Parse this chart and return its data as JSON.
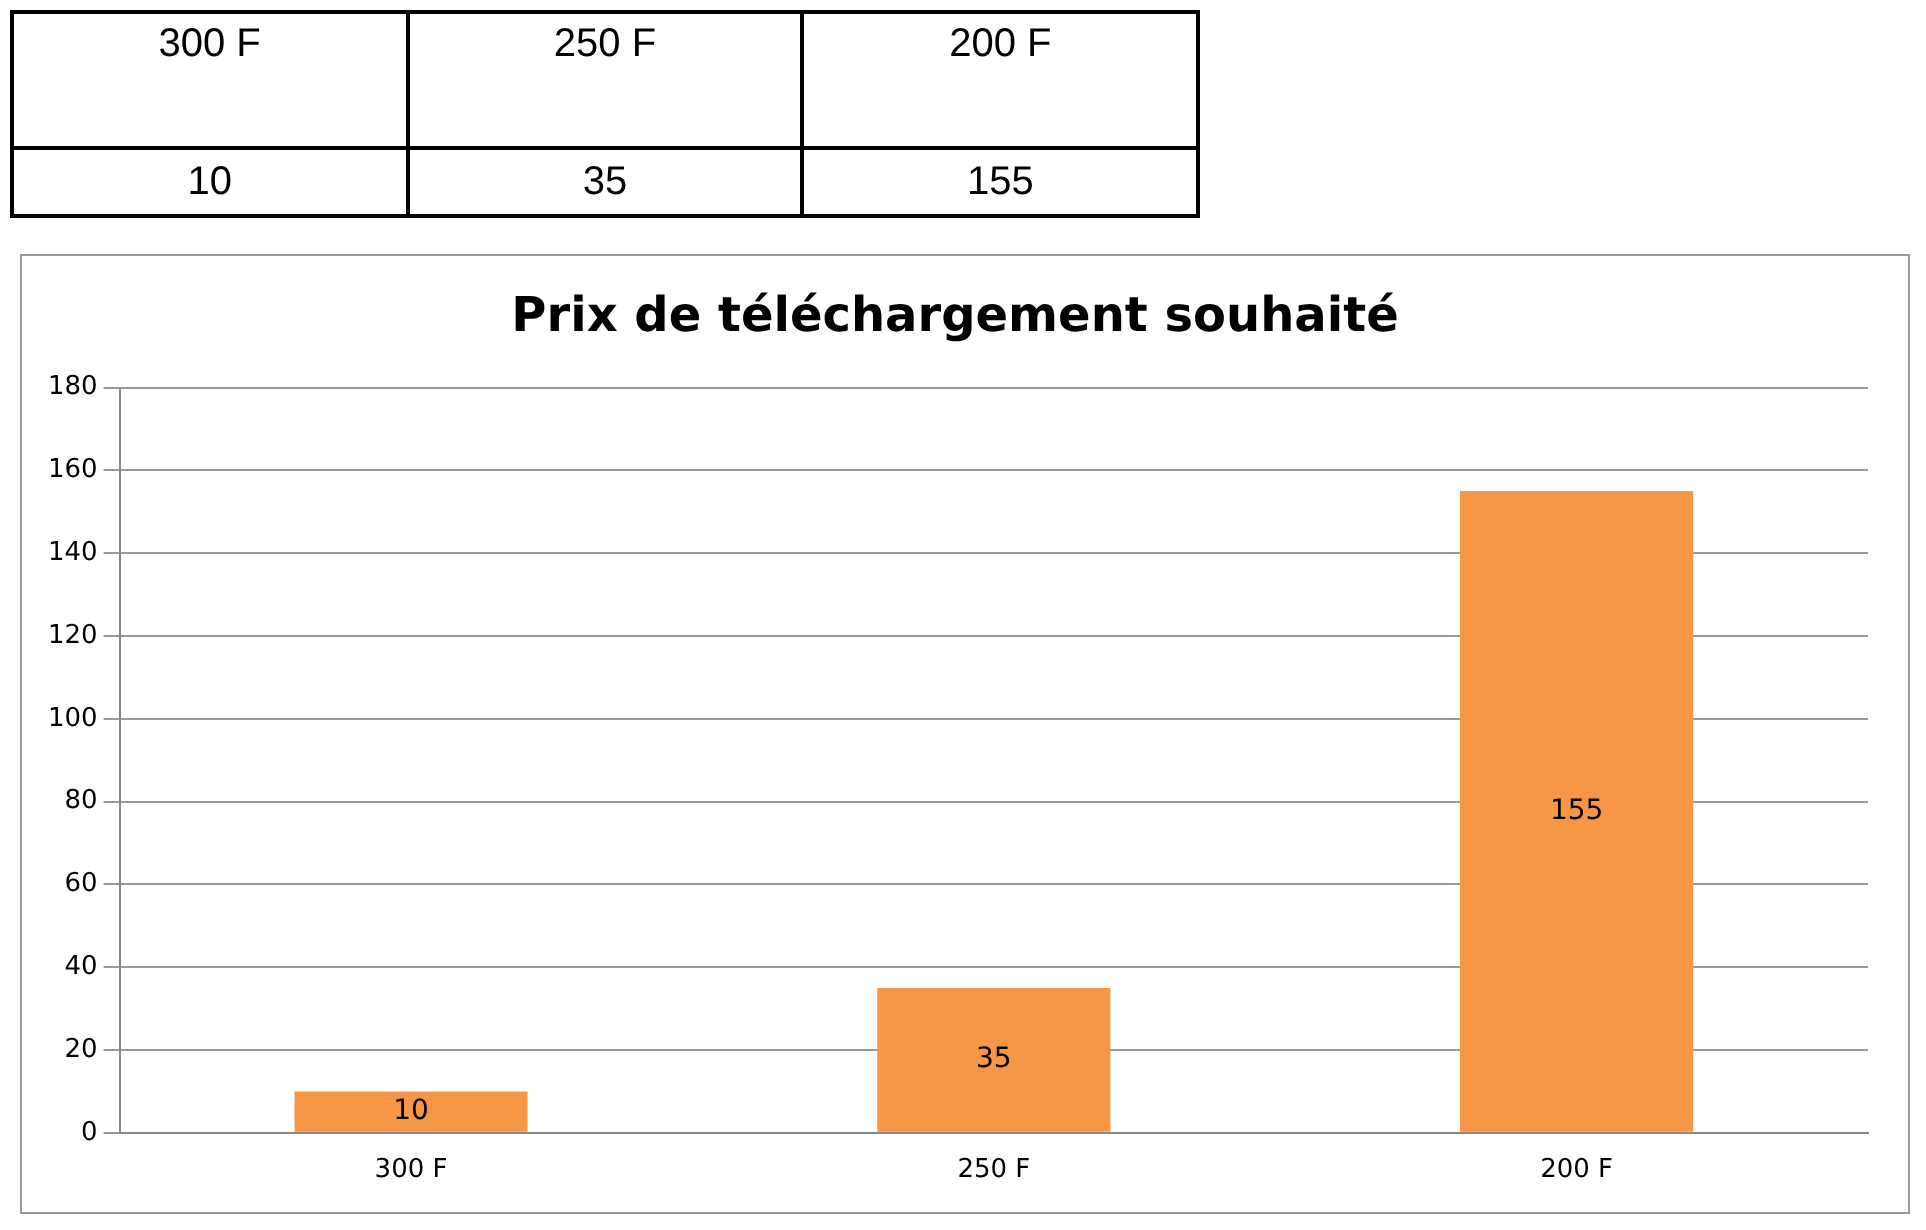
{
  "chart_data": {
    "type": "bar",
    "title": "Prix de téléchargement souhaité",
    "categories": [
      "300 F",
      "250 F",
      "200 F"
    ],
    "values": [
      10,
      35,
      155
    ],
    "annotations": [
      "10",
      "35",
      "155"
    ],
    "color": "#f79646",
    "ylim": [
      0,
      180
    ],
    "yticks": [
      0,
      20,
      40,
      60,
      80,
      100,
      120,
      140,
      160,
      180
    ],
    "grid": "y",
    "legend": false,
    "data_labels": true
  }
}
